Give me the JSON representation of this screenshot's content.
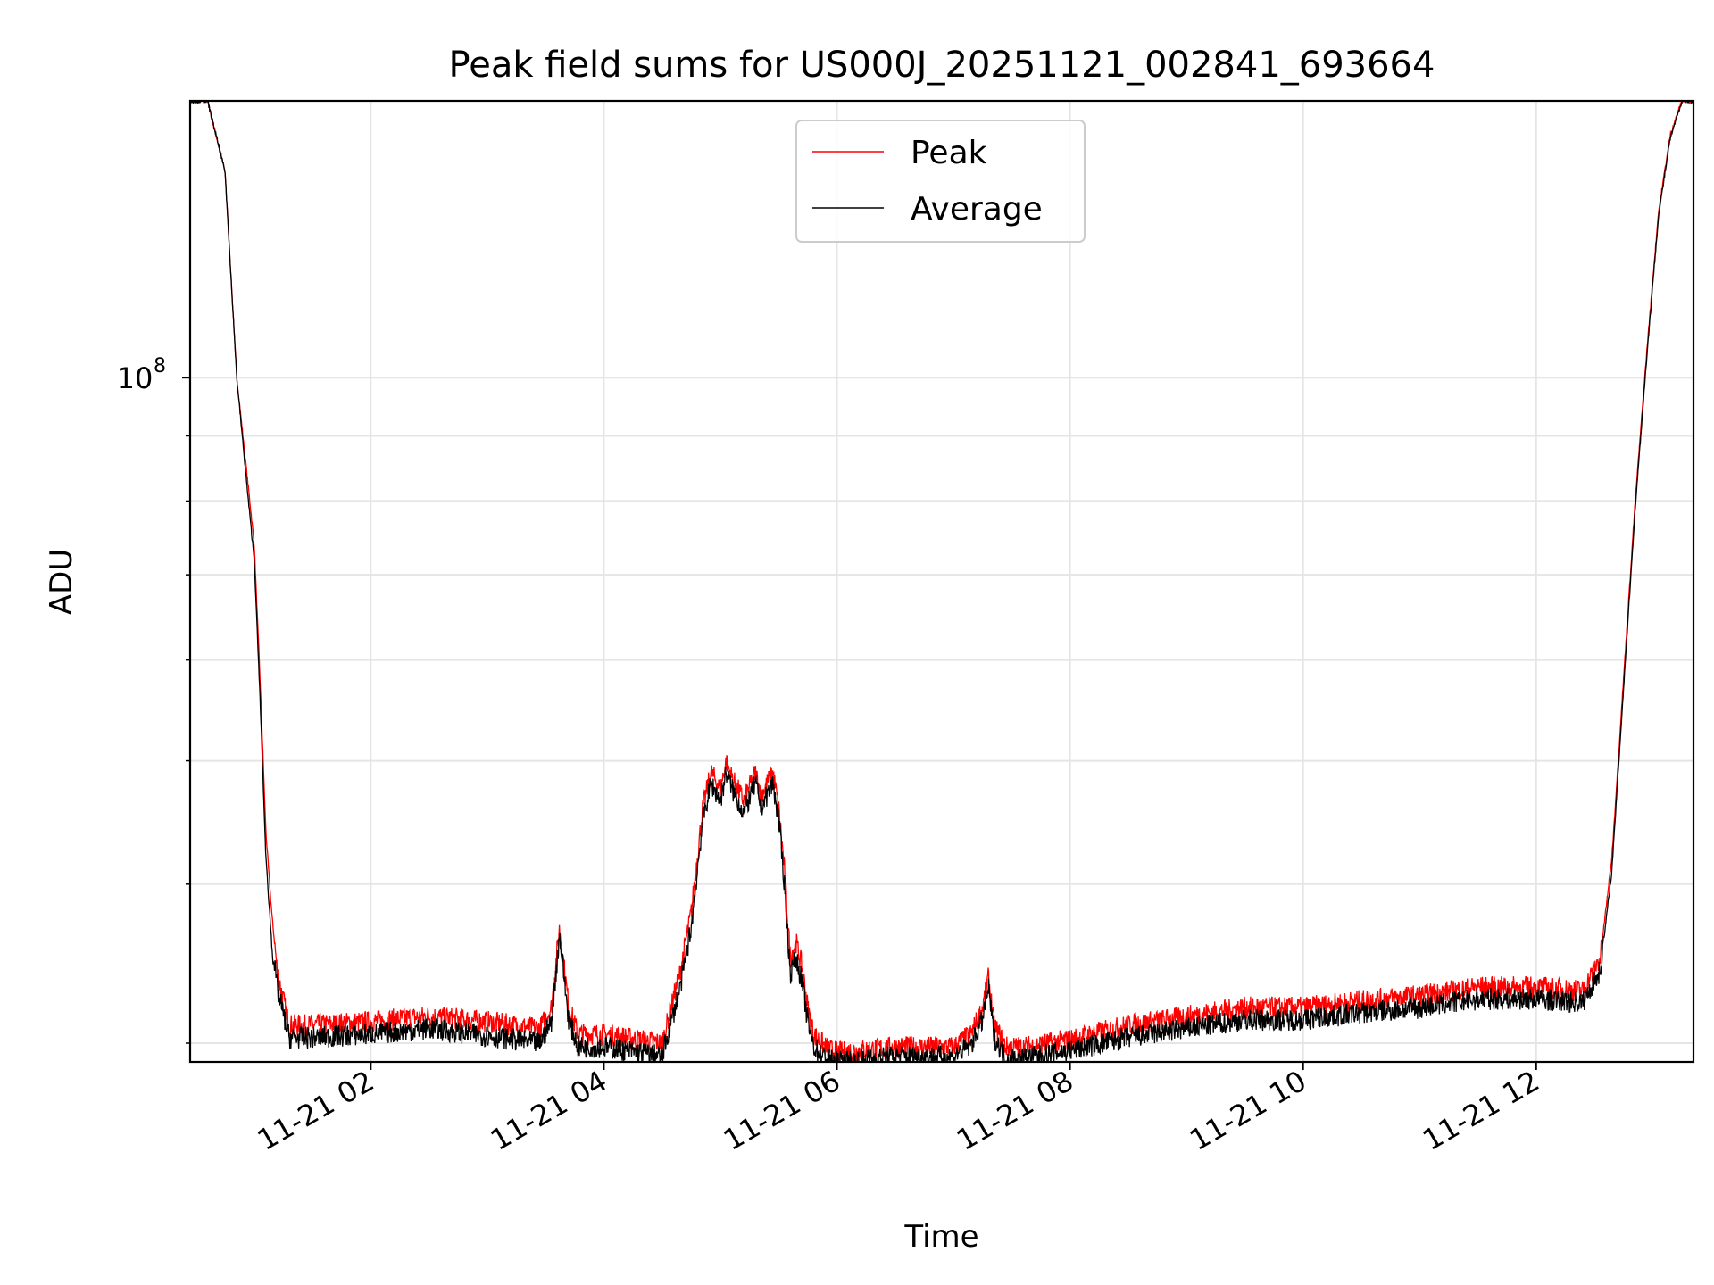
{
  "chart_data": {
    "type": "line",
    "title": "Peak field sums for US000J_20251121_002841_693664",
    "xlabel": "Time",
    "ylabel": "ADU",
    "y_scale": "log",
    "ylim": [
      29000000,
      165000000
    ],
    "xlim_hours": [
      0.45,
      13.35
    ],
    "x_ticks": [
      {
        "hour": 2,
        "label": "11-21 02"
      },
      {
        "hour": 4,
        "label": "11-21 04"
      },
      {
        "hour": 6,
        "label": "11-21 06"
      },
      {
        "hour": 8,
        "label": "11-21 08"
      },
      {
        "hour": 10,
        "label": "11-21 10"
      },
      {
        "hour": 12,
        "label": "11-21 12"
      }
    ],
    "y_major_ticks": [
      {
        "value": 100000000,
        "base": "10",
        "exponent": "8"
      }
    ],
    "y_minor_ticks": [
      30000000,
      40000000,
      50000000,
      60000000,
      70000000,
      80000000,
      90000000,
      200000000
    ],
    "grid": true,
    "legend": "upper-center",
    "colors": {
      "peak": "#ff0000",
      "average": "#000000",
      "grid": "#e5e5e5"
    },
    "series": [
      {
        "name": "Peak",
        "color": "#ff0000",
        "x_hours": [
          0.45,
          0.6,
          0.75,
          0.85,
          0.95,
          1.0,
          1.05,
          1.1,
          1.15,
          1.2,
          1.3,
          1.5,
          2.0,
          2.5,
          3.0,
          3.45,
          3.55,
          3.62,
          3.7,
          3.78,
          4.0,
          4.5,
          4.65,
          4.75,
          4.85,
          4.92,
          5.0,
          5.05,
          5.1,
          5.2,
          5.3,
          5.35,
          5.45,
          5.5,
          5.55,
          5.6,
          5.65,
          5.7,
          5.75,
          5.8,
          5.9,
          6.0,
          6.5,
          7.0,
          7.15,
          7.25,
          7.3,
          7.35,
          7.45,
          7.6,
          8.0,
          8.5,
          9.0,
          9.5,
          10.0,
          10.5,
          11.0,
          11.5,
          12.0,
          12.4,
          12.55,
          12.65,
          12.75,
          12.85,
          12.95,
          13.05,
          13.15,
          13.25,
          13.35
        ],
        "y": [
          165000000,
          165000000,
          145000000,
          100000000,
          82000000,
          74000000,
          58000000,
          44000000,
          38000000,
          34000000,
          31000000,
          31000000,
          31200000,
          31500000,
          31200000,
          30800000,
          32000000,
          37000000,
          32000000,
          30500000,
          30500000,
          30000000,
          34000000,
          38000000,
          46000000,
          49000000,
          47500000,
          50000000,
          48500000,
          46500000,
          49000000,
          47000000,
          49000000,
          46000000,
          41000000,
          35000000,
          36000000,
          34500000,
          32000000,
          30500000,
          29800000,
          29500000,
          29800000,
          29800000,
          30500000,
          32000000,
          33800000,
          31000000,
          29800000,
          29800000,
          30200000,
          31000000,
          31500000,
          32000000,
          32000000,
          32400000,
          32700000,
          33200000,
          33200000,
          33000000,
          35000000,
          42000000,
          58000000,
          80000000,
          105000000,
          135000000,
          155000000,
          165000000,
          165000000
        ]
      },
      {
        "name": "Average",
        "color": "#000000",
        "x_hours": [
          0.45,
          0.6,
          0.75,
          0.85,
          0.95,
          1.0,
          1.05,
          1.1,
          1.15,
          1.2,
          1.3,
          1.5,
          2.0,
          2.5,
          3.0,
          3.45,
          3.55,
          3.62,
          3.7,
          3.78,
          4.0,
          4.5,
          4.65,
          4.75,
          4.85,
          4.92,
          5.0,
          5.05,
          5.1,
          5.2,
          5.3,
          5.35,
          5.45,
          5.5,
          5.55,
          5.6,
          5.65,
          5.7,
          5.75,
          5.8,
          5.9,
          6.0,
          6.5,
          7.0,
          7.15,
          7.25,
          7.3,
          7.35,
          7.45,
          7.6,
          8.0,
          8.5,
          9.0,
          9.5,
          10.0,
          10.5,
          11.0,
          11.5,
          12.0,
          12.4,
          12.55,
          12.65,
          12.75,
          12.85,
          12.95,
          13.05,
          13.15,
          13.25,
          13.35
        ],
        "y": [
          165000000,
          165000000,
          145000000,
          100000000,
          80000000,
          72000000,
          56000000,
          42000000,
          36000000,
          33000000,
          30300000,
          30300000,
          30500000,
          30800000,
          30400000,
          30000000,
          31200000,
          36500000,
          31200000,
          29800000,
          29800000,
          29300000,
          33000000,
          37000000,
          45000000,
          48000000,
          46500000,
          49000000,
          47500000,
          45500000,
          48000000,
          46000000,
          48000000,
          45000000,
          40000000,
          34000000,
          35000000,
          33500000,
          31200000,
          29800000,
          29200000,
          29000000,
          29300000,
          29300000,
          29900000,
          31300000,
          33200000,
          30300000,
          29200000,
          29200000,
          29600000,
          30300000,
          30800000,
          31300000,
          31300000,
          31700000,
          32000000,
          32500000,
          32500000,
          32300000,
          34200000,
          41000000,
          57000000,
          79000000,
          104000000,
          134000000,
          154000000,
          165000000,
          165000000
        ]
      }
    ]
  }
}
